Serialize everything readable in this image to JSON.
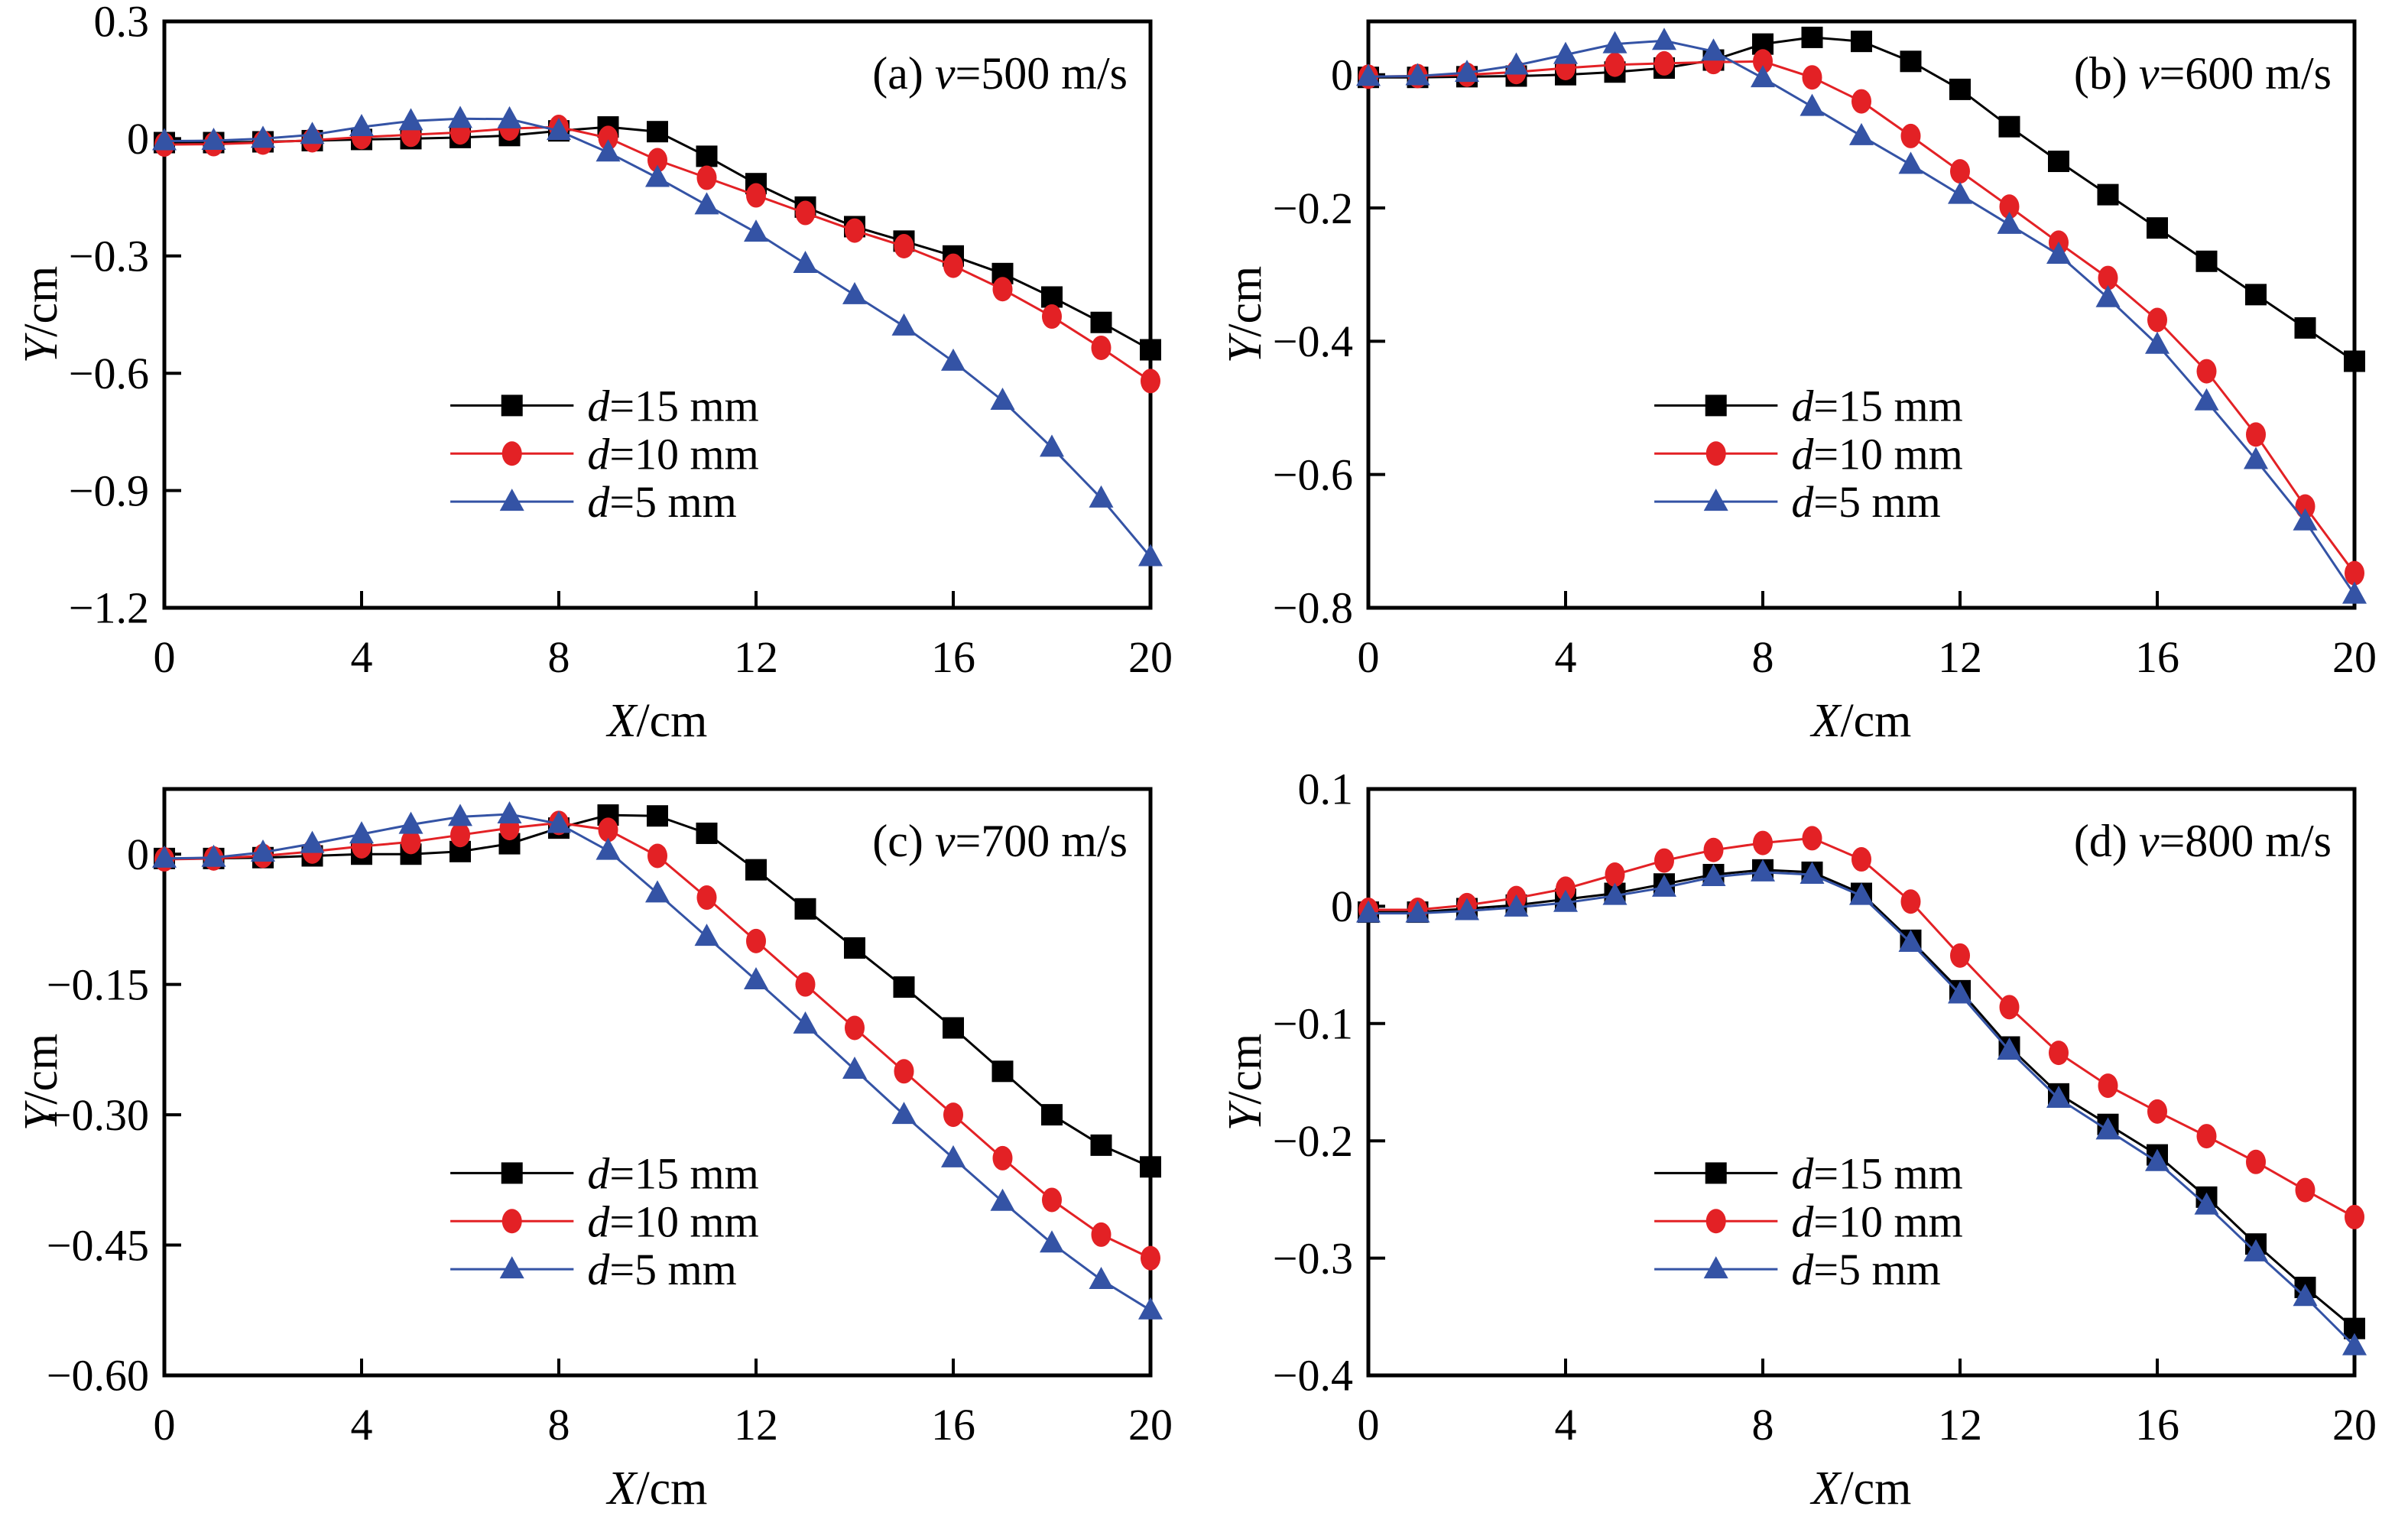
{
  "figure": {
    "background": "#ffffff",
    "axis_color": "#000000",
    "colors": {
      "d15": "#000000",
      "d10": "#e32125",
      "d5": "#3453a5"
    },
    "x_axis_label": {
      "var": "X",
      "rest": "/cm"
    },
    "y_axis_label": {
      "var": "Y",
      "rest": "/cm"
    }
  },
  "chart_data": [
    {
      "id": "a",
      "type": "line",
      "title": {
        "index": "(a) ",
        "var": "v",
        "rest": "=500 m/s"
      },
      "xlabel": {
        "var": "X",
        "rest": "/cm"
      },
      "ylabel": {
        "var": "Y",
        "rest": "/cm"
      },
      "xlim": [
        0,
        20
      ],
      "ylim": [
        -1.2,
        0.3
      ],
      "x_ticks": [
        {
          "v": 0,
          "label": "0"
        },
        {
          "v": 4,
          "label": "4"
        },
        {
          "v": 8,
          "label": "8"
        },
        {
          "v": 12,
          "label": "12"
        },
        {
          "v": 16,
          "label": "16"
        },
        {
          "v": 20,
          "label": "20"
        }
      ],
      "y_ticks": [
        {
          "v": 0.3,
          "label": "0.3"
        },
        {
          "v": 0,
          "label": "0"
        },
        {
          "v": -0.3,
          "label": "−0.3"
        },
        {
          "v": -0.6,
          "label": "−0.6"
        },
        {
          "v": -0.9,
          "label": "−0.9"
        },
        {
          "v": -1.2,
          "label": "−1.2"
        }
      ],
      "x": [
        0,
        1,
        2,
        3,
        4,
        5,
        6,
        7,
        8,
        9,
        10,
        11,
        12,
        13,
        14,
        15,
        16,
        17,
        18,
        19,
        20
      ],
      "series": [
        {
          "name": "d15",
          "legend": {
            "var": "d",
            "rest": "=15 mm"
          },
          "marker": "square",
          "color": "#000000",
          "values": [
            -0.01,
            -0.01,
            -0.008,
            -0.005,
            -0.002,
            0.0,
            0.003,
            0.008,
            0.02,
            0.03,
            0.018,
            -0.045,
            -0.115,
            -0.175,
            -0.225,
            -0.262,
            -0.3,
            -0.345,
            -0.405,
            -0.47,
            -0.54
          ]
        },
        {
          "name": "d10",
          "legend": {
            "var": "d",
            "rest": "=10 mm"
          },
          "marker": "circle",
          "color": "#e32125",
          "values": [
            -0.015,
            -0.014,
            -0.01,
            -0.004,
            0.004,
            0.01,
            0.016,
            0.026,
            0.03,
            0.002,
            -0.055,
            -0.1,
            -0.145,
            -0.19,
            -0.235,
            -0.275,
            -0.325,
            -0.385,
            -0.455,
            -0.535,
            -0.62
          ]
        },
        {
          "name": "d5",
          "legend": {
            "var": "d",
            "rest": "=5 mm"
          },
          "marker": "triangle",
          "color": "#3453a5",
          "values": [
            -0.006,
            -0.005,
            0.0,
            0.01,
            0.03,
            0.045,
            0.051,
            0.05,
            0.02,
            -0.035,
            -0.1,
            -0.17,
            -0.24,
            -0.32,
            -0.4,
            -0.48,
            -0.57,
            -0.67,
            -0.79,
            -0.92,
            -1.07
          ]
        }
      ]
    },
    {
      "id": "b",
      "type": "line",
      "title": {
        "index": "(b) ",
        "var": "v",
        "rest": "=600 m/s"
      },
      "xlabel": {
        "var": "X",
        "rest": "/cm"
      },
      "ylabel": {
        "var": "Y",
        "rest": "/cm"
      },
      "xlim": [
        0,
        20
      ],
      "ylim": [
        -0.8,
        0.08
      ],
      "x_ticks": [
        {
          "v": 0,
          "label": "0"
        },
        {
          "v": 4,
          "label": "4"
        },
        {
          "v": 8,
          "label": "8"
        },
        {
          "v": 12,
          "label": "12"
        },
        {
          "v": 16,
          "label": "16"
        },
        {
          "v": 20,
          "label": "20"
        }
      ],
      "y_ticks": [
        {
          "v": 0,
          "label": "0"
        },
        {
          "v": -0.2,
          "label": "−0.2"
        },
        {
          "v": -0.4,
          "label": "−0.4"
        },
        {
          "v": -0.6,
          "label": "−0.6"
        },
        {
          "v": -0.8,
          "label": "−0.8"
        }
      ],
      "x": [
        0,
        1,
        2,
        3,
        4,
        5,
        6,
        7,
        8,
        9,
        10,
        11,
        12,
        13,
        14,
        15,
        16,
        17,
        18,
        19,
        20
      ],
      "series": [
        {
          "name": "d15",
          "legend": {
            "var": "d",
            "rest": "=15 mm"
          },
          "marker": "square",
          "color": "#000000",
          "values": [
            -0.004,
            -0.004,
            -0.003,
            -0.002,
            0.0,
            0.004,
            0.01,
            0.022,
            0.046,
            0.056,
            0.05,
            0.02,
            -0.022,
            -0.078,
            -0.13,
            -0.18,
            -0.23,
            -0.28,
            -0.33,
            -0.38,
            -0.43
          ]
        },
        {
          "name": "d10",
          "legend": {
            "var": "d",
            "rest": "=10 mm"
          },
          "marker": "circle",
          "color": "#e32125",
          "values": [
            -0.003,
            -0.002,
            0.0,
            0.004,
            0.01,
            0.015,
            0.017,
            0.019,
            0.02,
            -0.004,
            -0.04,
            -0.092,
            -0.145,
            -0.198,
            -0.252,
            -0.305,
            -0.368,
            -0.445,
            -0.54,
            -0.648,
            -0.748
          ]
        },
        {
          "name": "d5",
          "legend": {
            "var": "d",
            "rest": "=5 mm"
          },
          "marker": "triangle",
          "color": "#3453a5",
          "values": [
            -0.003,
            -0.002,
            0.003,
            0.014,
            0.03,
            0.046,
            0.051,
            0.035,
            -0.005,
            -0.048,
            -0.092,
            -0.135,
            -0.18,
            -0.225,
            -0.27,
            -0.335,
            -0.405,
            -0.49,
            -0.578,
            -0.67,
            -0.78
          ]
        }
      ]
    },
    {
      "id": "c",
      "type": "line",
      "title": {
        "index": "(c) ",
        "var": "v",
        "rest": "=700 m/s"
      },
      "xlabel": {
        "var": "X",
        "rest": "/cm"
      },
      "ylabel": {
        "var": "Y",
        "rest": "/cm"
      },
      "xlim": [
        0,
        20
      ],
      "ylim": [
        -0.6,
        0.075
      ],
      "x_ticks": [
        {
          "v": 0,
          "label": "0"
        },
        {
          "v": 4,
          "label": "4"
        },
        {
          "v": 8,
          "label": "8"
        },
        {
          "v": 12,
          "label": "12"
        },
        {
          "v": 16,
          "label": "16"
        },
        {
          "v": 20,
          "label": "20"
        }
      ],
      "y_ticks": [
        {
          "v": 0,
          "label": "0"
        },
        {
          "v": -0.15,
          "label": "−0.15"
        },
        {
          "v": -0.3,
          "label": "−0.30"
        },
        {
          "v": -0.45,
          "label": "−0.45"
        },
        {
          "v": -0.6,
          "label": "−0.60"
        }
      ],
      "x": [
        0,
        1,
        2,
        3,
        4,
        5,
        6,
        7,
        8,
        9,
        10,
        11,
        12,
        13,
        14,
        15,
        16,
        17,
        18,
        19,
        20
      ],
      "series": [
        {
          "name": "d15",
          "legend": {
            "var": "d",
            "rest": "=15 mm"
          },
          "marker": "square",
          "color": "#000000",
          "values": [
            -0.005,
            -0.005,
            -0.004,
            -0.002,
            0.0,
            0.0,
            0.003,
            0.012,
            0.03,
            0.045,
            0.044,
            0.024,
            -0.018,
            -0.063,
            -0.108,
            -0.153,
            -0.2,
            -0.25,
            -0.3,
            -0.335,
            -0.36
          ]
        },
        {
          "name": "d10",
          "legend": {
            "var": "d",
            "rest": "=10 mm"
          },
          "marker": "circle",
          "color": "#e32125",
          "values": [
            -0.006,
            -0.005,
            -0.002,
            0.003,
            0.009,
            0.014,
            0.022,
            0.03,
            0.036,
            0.028,
            -0.002,
            -0.05,
            -0.1,
            -0.15,
            -0.2,
            -0.25,
            -0.3,
            -0.35,
            -0.398,
            -0.438,
            -0.465
          ]
        },
        {
          "name": "d5",
          "legend": {
            "var": "d",
            "rest": "=5 mm"
          },
          "marker": "triangle",
          "color": "#3453a5",
          "values": [
            -0.005,
            -0.004,
            0.002,
            0.012,
            0.023,
            0.034,
            0.043,
            0.046,
            0.035,
            0.004,
            -0.045,
            -0.095,
            -0.145,
            -0.196,
            -0.248,
            -0.3,
            -0.35,
            -0.4,
            -0.448,
            -0.49,
            -0.525
          ]
        }
      ]
    },
    {
      "id": "d",
      "type": "line",
      "title": {
        "index": "(d) ",
        "var": "v",
        "rest": "=800 m/s"
      },
      "xlabel": {
        "var": "X",
        "rest": "/cm"
      },
      "ylabel": {
        "var": "Y",
        "rest": "/cm"
      },
      "xlim": [
        0,
        20
      ],
      "ylim": [
        -0.4,
        0.1
      ],
      "x_ticks": [
        {
          "v": 0,
          "label": "0"
        },
        {
          "v": 4,
          "label": "4"
        },
        {
          "v": 8,
          "label": "8"
        },
        {
          "v": 12,
          "label": "12"
        },
        {
          "v": 16,
          "label": "16"
        },
        {
          "v": 20,
          "label": "20"
        }
      ],
      "y_ticks": [
        {
          "v": 0.1,
          "label": "0.1"
        },
        {
          "v": 0,
          "label": "0"
        },
        {
          "v": -0.1,
          "label": "−0.1"
        },
        {
          "v": -0.2,
          "label": "−0.2"
        },
        {
          "v": -0.3,
          "label": "−0.3"
        },
        {
          "v": -0.4,
          "label": "−0.4"
        }
      ],
      "x": [
        0,
        1,
        2,
        3,
        4,
        5,
        6,
        7,
        8,
        9,
        10,
        11,
        12,
        13,
        14,
        15,
        16,
        17,
        18,
        19,
        20
      ],
      "series": [
        {
          "name": "d15",
          "legend": {
            "var": "d",
            "rest": "=15 mm"
          },
          "marker": "square",
          "color": "#000000",
          "values": [
            -0.005,
            -0.005,
            -0.002,
            0.001,
            0.006,
            0.011,
            0.019,
            0.027,
            0.031,
            0.029,
            0.011,
            -0.029,
            -0.072,
            -0.12,
            -0.16,
            -0.186,
            -0.212,
            -0.248,
            -0.288,
            -0.325,
            -0.36
          ]
        },
        {
          "name": "d10",
          "legend": {
            "var": "d",
            "rest": "=10 mm"
          },
          "marker": "circle",
          "color": "#e32125",
          "values": [
            -0.003,
            -0.003,
            0.001,
            0.007,
            0.015,
            0.027,
            0.039,
            0.048,
            0.054,
            0.058,
            0.04,
            0.004,
            -0.042,
            -0.086,
            -0.125,
            -0.153,
            -0.175,
            -0.196,
            -0.218,
            -0.242,
            -0.265
          ]
        },
        {
          "name": "d5",
          "legend": {
            "var": "d",
            "rest": "=5 mm"
          },
          "marker": "triangle",
          "color": "#3453a5",
          "values": [
            -0.006,
            -0.006,
            -0.004,
            -0.001,
            0.003,
            0.009,
            0.016,
            0.025,
            0.029,
            0.027,
            0.009,
            -0.031,
            -0.075,
            -0.123,
            -0.164,
            -0.191,
            -0.218,
            -0.255,
            -0.295,
            -0.333,
            -0.375
          ]
        }
      ]
    }
  ]
}
